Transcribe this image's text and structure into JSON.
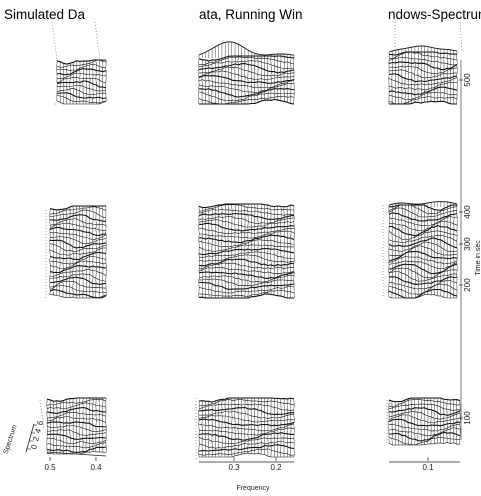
{
  "title_fragments": [
    "Simulated Da",
    "ata, Running Win",
    "ndows-Spectrum"
  ],
  "chart_data": {
    "type": "3d-wireframe-surface",
    "title_fragments": [
      "Simulated Da",
      "ata, Running Win",
      "ndows-Spectrum"
    ],
    "x_axis": {
      "label": "Frequency",
      "ticks": [
        "0.5",
        "0.4",
        "0.3",
        "0.2",
        "0.1"
      ]
    },
    "y_axis": {
      "label": "Time in sec",
      "ticks": [
        "100",
        "200",
        "300",
        "400",
        "500"
      ]
    },
    "z_axis": {
      "label": "Spectrum",
      "ticks": [
        "0",
        "2",
        "4",
        "6"
      ]
    },
    "grid": false,
    "layout": "3x3 tiles, partially blank"
  }
}
